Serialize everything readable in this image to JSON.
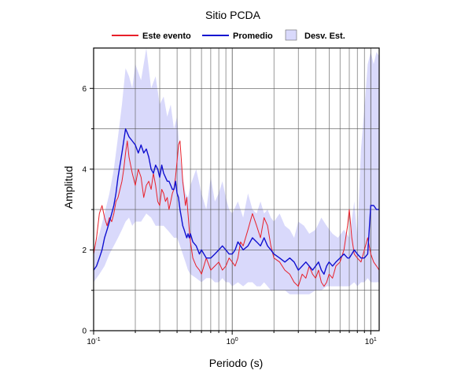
{
  "chart_data": {
    "type": "line",
    "title": "Sitio PCDA",
    "xlabel": "Periodo (s)",
    "ylabel": "Amplitud",
    "x_scale": "log",
    "xlim": [
      0.1,
      11.5
    ],
    "ylim": [
      0,
      7
    ],
    "grid": true,
    "legend_position": "top-center",
    "x_ticks": [
      {
        "value": 0.1,
        "base": "10",
        "exp": "-1"
      },
      {
        "value": 1,
        "base": "10",
        "exp": "0"
      },
      {
        "value": 10,
        "base": "10",
        "exp": "1"
      }
    ],
    "y_ticks": [
      0,
      2,
      4,
      6
    ],
    "legend": [
      {
        "label": "Este evento",
        "kind": "line",
        "color": "#e8202a"
      },
      {
        "label": "Promedio",
        "kind": "line",
        "color": "#1010d0"
      },
      {
        "label": "Desv. Est.",
        "kind": "band",
        "color": "#d9d9fb"
      }
    ],
    "series": [
      {
        "name": "Este evento",
        "color": "#e8202a",
        "x": [
          0.1,
          0.105,
          0.11,
          0.115,
          0.12,
          0.125,
          0.13,
          0.135,
          0.14,
          0.145,
          0.15,
          0.155,
          0.16,
          0.165,
          0.17,
          0.175,
          0.18,
          0.19,
          0.2,
          0.21,
          0.22,
          0.23,
          0.24,
          0.25,
          0.26,
          0.27,
          0.28,
          0.29,
          0.3,
          0.31,
          0.32,
          0.33,
          0.34,
          0.35,
          0.36,
          0.37,
          0.38,
          0.39,
          0.4,
          0.41,
          0.42,
          0.43,
          0.44,
          0.45,
          0.46,
          0.47,
          0.48,
          0.49,
          0.5,
          0.52,
          0.55,
          0.58,
          0.6,
          0.65,
          0.7,
          0.75,
          0.8,
          0.85,
          0.9,
          0.95,
          1.0,
          1.05,
          1.1,
          1.15,
          1.2,
          1.3,
          1.4,
          1.5,
          1.6,
          1.7,
          1.8,
          1.9,
          2.0,
          2.2,
          2.4,
          2.6,
          2.8,
          3.0,
          3.2,
          3.4,
          3.6,
          3.8,
          4.0,
          4.2,
          4.4,
          4.6,
          4.8,
          5.0,
          5.3,
          5.6,
          6.0,
          6.4,
          6.8,
          7.0,
          7.3,
          7.6,
          8.0,
          8.5,
          9.0,
          9.5,
          10.0,
          10.5,
          11.0,
          11.5
        ],
        "y": [
          1.9,
          2.3,
          2.9,
          3.1,
          2.8,
          2.6,
          2.8,
          2.7,
          2.9,
          3.2,
          3.3,
          3.5,
          3.7,
          4.0,
          4.4,
          4.7,
          4.3,
          3.9,
          3.6,
          4.0,
          3.8,
          3.3,
          3.6,
          3.7,
          3.5,
          3.9,
          3.6,
          3.2,
          3.1,
          3.5,
          3.4,
          3.2,
          3.3,
          3.0,
          3.2,
          3.4,
          3.5,
          3.8,
          4.2,
          4.6,
          4.7,
          4.2,
          3.7,
          3.4,
          3.1,
          3.3,
          2.9,
          2.5,
          2.2,
          1.8,
          1.6,
          1.5,
          1.4,
          1.8,
          1.5,
          1.6,
          1.7,
          1.5,
          1.6,
          1.8,
          1.7,
          1.6,
          1.8,
          2.2,
          2.1,
          2.5,
          2.9,
          2.6,
          2.3,
          2.8,
          2.6,
          2.1,
          1.8,
          1.7,
          1.5,
          1.4,
          1.2,
          1.1,
          1.4,
          1.3,
          1.6,
          1.4,
          1.3,
          1.5,
          1.2,
          1.1,
          1.2,
          1.4,
          1.3,
          1.6,
          1.7,
          2.0,
          2.6,
          3.0,
          2.3,
          1.9,
          1.8,
          1.7,
          2.0,
          2.3,
          1.9,
          1.7,
          1.6,
          1.5
        ]
      },
      {
        "name": "Promedio",
        "color": "#1010d0",
        "x": [
          0.1,
          0.105,
          0.11,
          0.115,
          0.12,
          0.125,
          0.13,
          0.135,
          0.14,
          0.145,
          0.15,
          0.155,
          0.16,
          0.165,
          0.17,
          0.175,
          0.18,
          0.19,
          0.2,
          0.21,
          0.22,
          0.23,
          0.24,
          0.25,
          0.26,
          0.27,
          0.28,
          0.29,
          0.3,
          0.31,
          0.32,
          0.33,
          0.34,
          0.35,
          0.36,
          0.37,
          0.38,
          0.39,
          0.4,
          0.41,
          0.42,
          0.43,
          0.44,
          0.45,
          0.46,
          0.47,
          0.48,
          0.49,
          0.5,
          0.52,
          0.55,
          0.58,
          0.6,
          0.65,
          0.7,
          0.75,
          0.8,
          0.85,
          0.9,
          0.95,
          1.0,
          1.05,
          1.1,
          1.15,
          1.2,
          1.3,
          1.4,
          1.5,
          1.6,
          1.7,
          1.8,
          1.9,
          2.0,
          2.2,
          2.4,
          2.6,
          2.8,
          3.0,
          3.2,
          3.4,
          3.6,
          3.8,
          4.0,
          4.2,
          4.4,
          4.6,
          4.8,
          5.0,
          5.3,
          5.6,
          6.0,
          6.4,
          6.8,
          7.0,
          7.3,
          7.6,
          8.0,
          8.5,
          9.0,
          9.5,
          10.0,
          10.5,
          11.0,
          11.5
        ],
        "y": [
          1.5,
          1.6,
          1.8,
          2.0,
          2.3,
          2.5,
          2.7,
          2.9,
          3.1,
          3.4,
          3.8,
          4.1,
          4.4,
          4.7,
          5.0,
          4.9,
          4.8,
          4.7,
          4.6,
          4.4,
          4.6,
          4.4,
          4.5,
          4.3,
          4.0,
          3.9,
          4.1,
          4.0,
          3.8,
          4.1,
          3.9,
          3.8,
          3.7,
          3.7,
          3.6,
          3.5,
          3.5,
          3.7,
          3.4,
          3.3,
          3.0,
          2.8,
          2.6,
          2.5,
          2.4,
          2.3,
          2.4,
          2.3,
          2.4,
          2.2,
          2.1,
          1.9,
          2.0,
          1.8,
          1.8,
          1.9,
          2.0,
          2.1,
          2.0,
          1.9,
          1.9,
          2.0,
          2.2,
          2.1,
          2.0,
          2.1,
          2.3,
          2.2,
          2.1,
          2.3,
          2.1,
          2.0,
          1.9,
          1.8,
          1.7,
          1.8,
          1.7,
          1.5,
          1.6,
          1.7,
          1.6,
          1.5,
          1.6,
          1.7,
          1.5,
          1.4,
          1.6,
          1.7,
          1.6,
          1.7,
          1.8,
          1.9,
          1.8,
          1.8,
          1.9,
          2.0,
          1.9,
          1.8,
          1.8,
          1.9,
          3.1,
          3.1,
          3.0,
          3.0
        ]
      }
    ],
    "band": {
      "name": "Desv. Est.",
      "color": "#d9d9fb",
      "x": [
        0.1,
        0.11,
        0.12,
        0.13,
        0.14,
        0.15,
        0.16,
        0.17,
        0.18,
        0.19,
        0.2,
        0.22,
        0.24,
        0.26,
        0.28,
        0.3,
        0.32,
        0.34,
        0.36,
        0.38,
        0.4,
        0.42,
        0.44,
        0.46,
        0.48,
        0.5,
        0.55,
        0.6,
        0.65,
        0.7,
        0.75,
        0.8,
        0.85,
        0.9,
        0.95,
        1.0,
        1.1,
        1.2,
        1.3,
        1.4,
        1.5,
        1.6,
        1.7,
        1.8,
        1.9,
        2.0,
        2.2,
        2.4,
        2.6,
        2.8,
        3.0,
        3.3,
        3.6,
        4.0,
        4.4,
        4.8,
        5.3,
        5.8,
        6.4,
        7.0,
        7.6,
        8.0,
        8.5,
        9.0,
        9.5,
        10.0,
        10.5,
        11.0,
        11.5
      ],
      "upper": [
        2.0,
        2.4,
        2.9,
        3.4,
        4.0,
        4.8,
        5.6,
        6.5,
        6.3,
        6.0,
        6.6,
        6.2,
        7.0,
        6.0,
        6.3,
        5.6,
        5.8,
        5.3,
        5.6,
        5.0,
        5.3,
        4.3,
        3.8,
        3.4,
        3.3,
        3.6,
        4.0,
        3.4,
        3.0,
        3.8,
        3.2,
        3.4,
        3.7,
        3.3,
        3.0,
        2.9,
        3.2,
        2.8,
        3.4,
        3.0,
        2.9,
        3.2,
        2.9,
        3.0,
        2.8,
        2.7,
        2.9,
        2.6,
        2.5,
        2.3,
        2.7,
        2.6,
        2.4,
        2.5,
        2.8,
        2.6,
        2.4,
        2.3,
        2.5,
        2.3,
        3.2,
        2.3,
        4.5,
        5.5,
        6.6,
        6.9,
        6.6,
        6.9,
        6.8
      ],
      "lower": [
        1.2,
        1.4,
        1.6,
        1.9,
        2.1,
        2.3,
        2.5,
        2.7,
        2.8,
        2.6,
        2.7,
        2.7,
        2.9,
        2.8,
        2.6,
        2.6,
        2.6,
        2.5,
        2.4,
        2.3,
        2.3,
        2.1,
        1.9,
        1.7,
        1.5,
        1.4,
        1.3,
        1.2,
        1.3,
        1.3,
        1.2,
        1.2,
        1.3,
        1.2,
        1.2,
        1.1,
        1.2,
        1.1,
        1.2,
        1.2,
        1.1,
        1.1,
        1.2,
        1.1,
        1.0,
        1.0,
        1.0,
        1.0,
        0.9,
        0.9,
        0.9,
        0.9,
        0.9,
        1.0,
        1.0,
        1.1,
        1.1,
        1.1,
        1.1,
        1.1,
        1.2,
        1.1,
        1.2,
        1.2,
        1.3,
        1.2,
        1.2,
        1.2,
        1.2
      ]
    }
  }
}
